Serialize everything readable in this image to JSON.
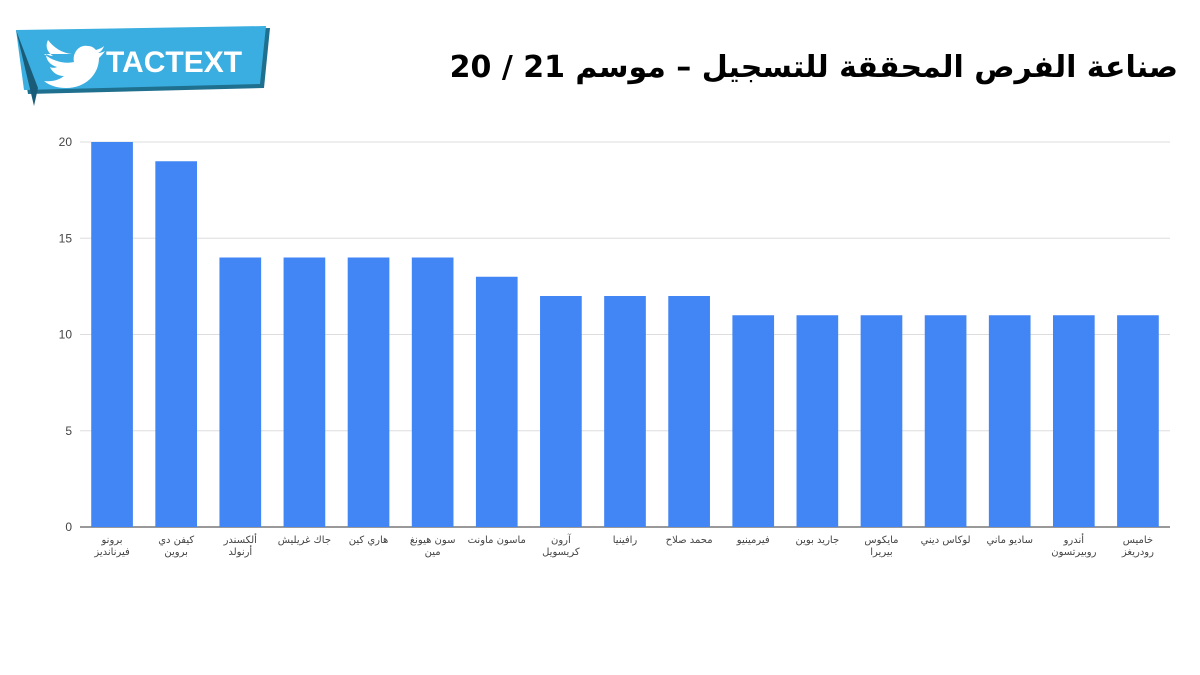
{
  "brand": {
    "name": "TACTEXT",
    "icon": "twitter-bird-icon",
    "colors": {
      "badge": "#3aaee0",
      "badge_dark": "#1f6f8f",
      "text": "#ffffff"
    }
  },
  "header": {
    "title": "صناعة الفرص المحققة للتسجيل – موسم 21 / 20"
  },
  "chart_data": {
    "type": "bar",
    "title": "",
    "xlabel": "",
    "ylabel": "",
    "ylim": [
      0,
      20
    ],
    "yticks": [
      "0",
      "5",
      "10",
      "15",
      "20"
    ],
    "grid": true,
    "legend": "none",
    "bar_color": "#4285f4",
    "categories": [
      [
        "برونو",
        "فيرنانديز"
      ],
      [
        "كيفن دي",
        "بروين"
      ],
      [
        "ألكسندر",
        "أرنولد"
      ],
      [
        "جاك غريليش"
      ],
      [
        "هاري كين"
      ],
      [
        "سون هيونغ",
        "مين"
      ],
      [
        "ماسون ماونت"
      ],
      [
        "آرون",
        "كريسويل"
      ],
      [
        "رافينيا"
      ],
      [
        "محمد صلاح"
      ],
      [
        "فيرمينيو"
      ],
      [
        "جاريد بوين"
      ],
      [
        "مايكوس",
        "بيريرا"
      ],
      [
        "لوكاس ديني"
      ],
      [
        "ساديو ماني"
      ],
      [
        "أندرو",
        "روبيرتسون"
      ],
      [
        "خاميس",
        "رودريغز"
      ]
    ],
    "values": [
      20,
      19,
      14,
      14,
      14,
      14,
      13,
      12,
      12,
      12,
      11,
      11,
      11,
      11,
      11,
      11,
      11
    ]
  }
}
